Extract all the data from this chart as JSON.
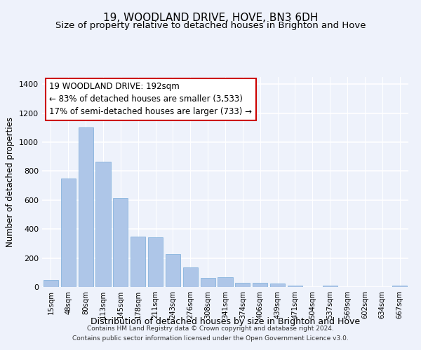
{
  "title": "19, WOODLAND DRIVE, HOVE, BN3 6DH",
  "subtitle": "Size of property relative to detached houses in Brighton and Hove",
  "xlabel": "Distribution of detached houses by size in Brighton and Hove",
  "ylabel": "Number of detached properties",
  "footer_line1": "Contains HM Land Registry data © Crown copyright and database right 2024.",
  "footer_line2": "Contains public sector information licensed under the Open Government Licence v3.0.",
  "categories": [
    "15sqm",
    "48sqm",
    "80sqm",
    "113sqm",
    "145sqm",
    "178sqm",
    "211sqm",
    "243sqm",
    "276sqm",
    "308sqm",
    "341sqm",
    "374sqm",
    "406sqm",
    "439sqm",
    "471sqm",
    "504sqm",
    "537sqm",
    "569sqm",
    "602sqm",
    "634sqm",
    "667sqm"
  ],
  "values": [
    50,
    750,
    1100,
    865,
    615,
    350,
    345,
    225,
    135,
    65,
    70,
    30,
    30,
    22,
    12,
    0,
    12,
    0,
    0,
    0,
    12
  ],
  "bar_color": "#aec6e8",
  "bar_edge_color": "#7aadda",
  "background_color": "#eef2fb",
  "grid_color": "#ffffff",
  "annotation_box_color": "#ffffff",
  "annotation_border_color": "#cc0000",
  "annotation_text_line1": "19 WOODLAND DRIVE: 192sqm",
  "annotation_text_line2": "← 83% of detached houses are smaller (3,533)",
  "annotation_text_line3": "17% of semi-detached houses are larger (733) →",
  "annotation_fontsize": 8.5,
  "title_fontsize": 11,
  "subtitle_fontsize": 9.5,
  "ylabel_fontsize": 8.5,
  "xlabel_fontsize": 9,
  "ylim": [
    0,
    1450
  ],
  "yticks": [
    0,
    200,
    400,
    600,
    800,
    1000,
    1200,
    1400
  ],
  "footer_fontsize": 6.5
}
